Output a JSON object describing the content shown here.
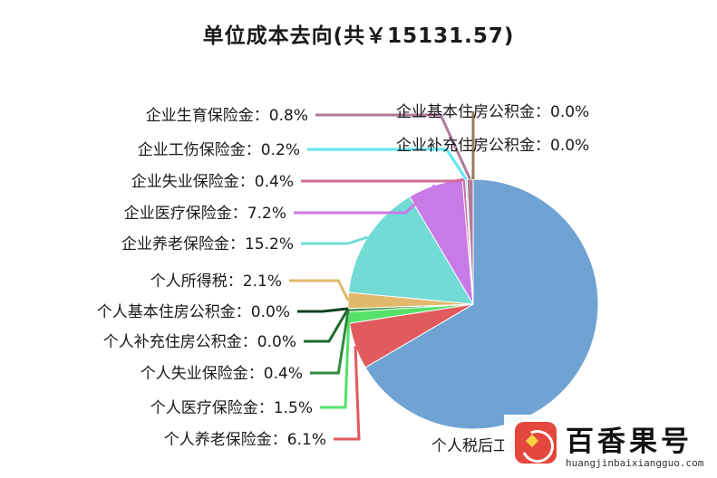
{
  "chart_data": {
    "type": "pie",
    "title": "单位成本去向(共￥15131.57)",
    "unit": "%",
    "slices": [
      {
        "label": "个人税后工资",
        "value": 67.4,
        "color": "#6fa3d4"
      },
      {
        "label": "个人养老保险金",
        "value": 6.1,
        "color": "#e05a5e"
      },
      {
        "label": "个人医疗保险金",
        "value": 1.5,
        "color": "#56e16a"
      },
      {
        "label": "个人失业保险金",
        "value": 0.4,
        "color": "#2e8b3c"
      },
      {
        "label": "个人补充住房公积金",
        "value": 0.0,
        "color": "#1f6b2e"
      },
      {
        "label": "个人基本住房公积金",
        "value": 0.0,
        "color": "#0f4020"
      },
      {
        "label": "个人所得税",
        "value": 2.1,
        "color": "#e2b86c"
      },
      {
        "label": "企业养老保险金",
        "value": 15.2,
        "color": "#72dbd6"
      },
      {
        "label": "企业医疗保险金",
        "value": 7.2,
        "color": "#c87ae6"
      },
      {
        "label": "企业失业保险金",
        "value": 0.4,
        "color": "#d06a98"
      },
      {
        "label": "企业工伤保险金",
        "value": 0.2,
        "color": "#5fe6f2"
      },
      {
        "label": "企业生育保险金",
        "value": 0.8,
        "color": "#b07a9a"
      },
      {
        "label": "企业补充住房公积金",
        "value": 0.0,
        "color": "#e8a97a"
      },
      {
        "label": "企业基本住房公积金",
        "value": 0.0,
        "color": "#9a7a5a"
      }
    ],
    "value_labels": [
      "个人税后工资",
      "个人养老保险金：6.1%",
      "个人医疗保险金：1.5%",
      "个人失业保险金：0.4%",
      "个人补充住房公积金：0.0%",
      "个人基本住房公积金：0.0%",
      "个人所得税：2.1%",
      "企业养老保险金：15.2%",
      "企业医疗保险金：7.2%",
      "企业失业保险金：0.4%",
      "企业工伤保险金：0.2%",
      "企业生育保险金：0.8%",
      "企业补充住房公积金：0.0%",
      "企业基本住房公积金：0.0%"
    ]
  },
  "watermark": {
    "name": "百香果号",
    "url": "huangjinbaixiangguo.com"
  }
}
